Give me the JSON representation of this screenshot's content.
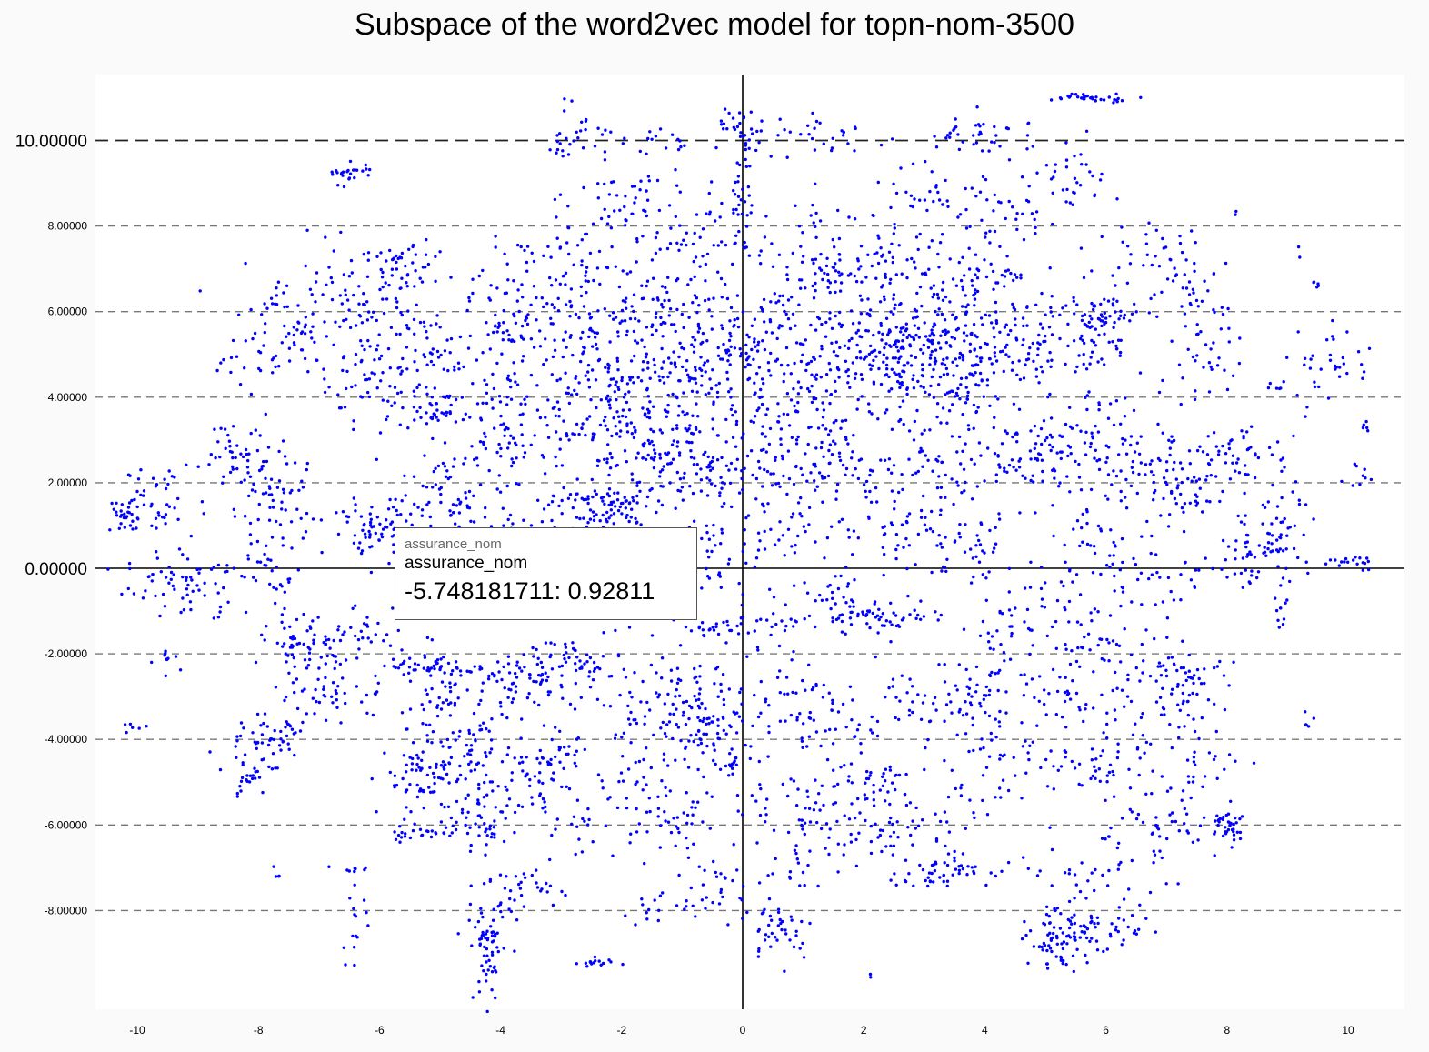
{
  "chart_data": {
    "type": "scatter",
    "title": "Subspace of the word2vec model for topn-nom-3500",
    "xlabel": "",
    "ylabel": "",
    "xlim": [
      -10.5,
      10.5
    ],
    "ylim": [
      -10.4,
      11.4
    ],
    "x_ticks": [
      "-10",
      "-8",
      "-6",
      "-4",
      "-2",
      "0",
      "2",
      "4",
      "6",
      "8",
      "10"
    ],
    "y_ticks": [
      {
        "value": 10,
        "label": "10.00000",
        "major": true,
        "dashed": true
      },
      {
        "value": 8,
        "label": "8.00000",
        "major": false,
        "dashed": true
      },
      {
        "value": 6,
        "label": "6.00000",
        "major": false,
        "dashed": true
      },
      {
        "value": 4,
        "label": "4.00000",
        "major": false,
        "dashed": true
      },
      {
        "value": 2,
        "label": "2.00000",
        "major": false,
        "dashed": true
      },
      {
        "value": 0,
        "label": "0.00000",
        "major": true,
        "dashed": false
      },
      {
        "value": -2,
        "label": "-2.00000",
        "major": false,
        "dashed": true
      },
      {
        "value": -4,
        "label": "-4.00000",
        "major": false,
        "dashed": true
      },
      {
        "value": -6,
        "label": "-6.00000",
        "major": false,
        "dashed": true
      },
      {
        "value": -8,
        "label": "-8.00000",
        "major": false,
        "dashed": true
      }
    ],
    "point_color": "#0000ff",
    "point_count": 3500,
    "clusters": [
      [
        -10.2,
        1.2,
        0.2,
        0.2,
        30
      ],
      [
        -9.6,
        1.6,
        0.3,
        0.4,
        40
      ],
      [
        -9.2,
        -0.4,
        0.5,
        0.4,
        70
      ],
      [
        -10.0,
        -3.7,
        0.15,
        0.1,
        6
      ],
      [
        -9.5,
        -2.1,
        0.15,
        0.2,
        10
      ],
      [
        -8.6,
        4.7,
        0.1,
        0.1,
        3
      ],
      [
        -8.3,
        2.8,
        0.3,
        0.4,
        40
      ],
      [
        -7.8,
        1.5,
        0.3,
        0.8,
        70
      ],
      [
        -7.6,
        5.5,
        0.5,
        0.6,
        80
      ],
      [
        -7.8,
        -0.2,
        0.3,
        0.3,
        20
      ],
      [
        -7.4,
        -1.7,
        0.2,
        0.3,
        20
      ],
      [
        -7.8,
        -3.9,
        0.4,
        0.3,
        50
      ],
      [
        -8.2,
        -4.8,
        0.2,
        0.4,
        30
      ],
      [
        -7.7,
        -7.2,
        0.05,
        0.1,
        4
      ],
      [
        -6.7,
        -1.7,
        0.6,
        0.4,
        80
      ],
      [
        -6.8,
        -2.9,
        0.5,
        0.3,
        40
      ],
      [
        -6.3,
        5.9,
        0.6,
        0.7,
        80
      ],
      [
        -6.3,
        4.2,
        0.3,
        0.4,
        30
      ],
      [
        -6.5,
        9.2,
        0.2,
        0.15,
        25
      ],
      [
        -6.4,
        -7.0,
        0.2,
        0.1,
        8
      ],
      [
        -6.4,
        -8.3,
        0.1,
        0.4,
        15
      ],
      [
        -6.0,
        0.9,
        0.4,
        0.3,
        70
      ],
      [
        -5.5,
        7.0,
        0.4,
        0.4,
        40
      ],
      [
        -5.3,
        5.0,
        0.6,
        0.7,
        80
      ],
      [
        -5.0,
        3.8,
        0.4,
        0.3,
        40
      ],
      [
        -4.8,
        1.6,
        0.6,
        0.6,
        80
      ],
      [
        -5.2,
        -2.3,
        0.3,
        0.1,
        30
      ],
      [
        -4.6,
        -2.4,
        0.3,
        0.1,
        25
      ],
      [
        -5.0,
        -4.7,
        0.5,
        0.5,
        120
      ],
      [
        -4.8,
        -3.2,
        0.5,
        0.4,
        50
      ],
      [
        -4.4,
        -6.1,
        0.4,
        0.3,
        50
      ],
      [
        -5.4,
        -6.2,
        0.3,
        0.1,
        20
      ],
      [
        -4.2,
        -9.0,
        0.12,
        0.6,
        60
      ],
      [
        -4.2,
        -7.8,
        0.3,
        0.4,
        20
      ],
      [
        -3.7,
        5.6,
        0.5,
        0.8,
        90
      ],
      [
        -3.8,
        3.3,
        0.4,
        0.6,
        70
      ],
      [
        -3.6,
        0.7,
        0.4,
        0.4,
        40
      ],
      [
        -3.5,
        -2.7,
        0.4,
        0.3,
        50
      ],
      [
        -3.6,
        -5.0,
        0.5,
        0.4,
        50
      ],
      [
        -3.4,
        -7.5,
        0.4,
        0.3,
        20
      ],
      [
        -2.8,
        10.2,
        0.3,
        0.3,
        30
      ],
      [
        -2.9,
        7.0,
        0.5,
        0.6,
        60
      ],
      [
        -2.6,
        5.2,
        0.5,
        0.6,
        70
      ],
      [
        -2.4,
        3.4,
        0.5,
        0.6,
        80
      ],
      [
        -2.4,
        1.4,
        0.5,
        0.3,
        100
      ],
      [
        -2.6,
        -2.2,
        0.5,
        0.4,
        60
      ],
      [
        -2.8,
        -4.2,
        0.5,
        0.5,
        50
      ],
      [
        -2.4,
        -9.2,
        0.2,
        0.05,
        15
      ],
      [
        -2.6,
        -6.0,
        0.5,
        0.5,
        30
      ],
      [
        -1.9,
        8.5,
        0.5,
        0.6,
        50
      ],
      [
        -1.5,
        6.1,
        0.6,
        0.6,
        90
      ],
      [
        -1.5,
        4.2,
        0.6,
        0.6,
        90
      ],
      [
        -1.3,
        2.6,
        0.6,
        0.5,
        70
      ],
      [
        -1.0,
        -3.2,
        0.5,
        0.5,
        90
      ],
      [
        -1.4,
        -4.8,
        0.5,
        0.5,
        40
      ],
      [
        -1.2,
        -5.9,
        0.3,
        0.3,
        30
      ],
      [
        -1.6,
        -8.0,
        0.3,
        0.2,
        15
      ],
      [
        -1.3,
        10.0,
        0.3,
        0.2,
        15
      ],
      [
        -0.5,
        7.8,
        0.5,
        0.5,
        50
      ],
      [
        -0.5,
        4.8,
        0.5,
        0.6,
        100
      ],
      [
        -0.4,
        2.3,
        0.5,
        0.4,
        60
      ],
      [
        -0.5,
        0.2,
        0.4,
        0.4,
        40
      ],
      [
        -0.4,
        -1.4,
        0.5,
        0.1,
        25
      ],
      [
        -0.5,
        -4.0,
        0.4,
        0.4,
        40
      ],
      [
        -0.2,
        -4.6,
        0.1,
        0.1,
        10
      ],
      [
        -0.4,
        -7.4,
        0.3,
        0.4,
        30
      ],
      [
        0.0,
        10.1,
        0.2,
        0.3,
        30
      ],
      [
        0.0,
        8.5,
        0.1,
        0.8,
        30
      ],
      [
        0.2,
        5.6,
        0.5,
        0.6,
        60
      ],
      [
        0.4,
        3.3,
        0.5,
        0.7,
        70
      ],
      [
        0.6,
        1.2,
        0.5,
        0.7,
        60
      ],
      [
        0.3,
        -1.2,
        0.4,
        0.4,
        30
      ],
      [
        0.6,
        -3.2,
        0.5,
        0.5,
        40
      ],
      [
        0.8,
        -5.6,
        0.5,
        0.5,
        40
      ],
      [
        0.6,
        -8.4,
        0.3,
        0.4,
        40
      ],
      [
        1.0,
        -7.2,
        0.4,
        0.4,
        20
      ],
      [
        1.4,
        10.1,
        0.5,
        0.3,
        30
      ],
      [
        1.5,
        7.0,
        0.6,
        0.8,
        90
      ],
      [
        1.3,
        4.5,
        0.5,
        0.8,
        90
      ],
      [
        1.6,
        2.4,
        0.4,
        0.4,
        50
      ],
      [
        1.5,
        -0.8,
        0.4,
        0.4,
        40
      ],
      [
        1.4,
        -3.6,
        0.4,
        0.5,
        40
      ],
      [
        1.8,
        -6.2,
        0.5,
        0.3,
        30
      ],
      [
        2.0,
        -5.0,
        0.4,
        0.4,
        40
      ],
      [
        2.3,
        5.0,
        0.5,
        0.6,
        100
      ],
      [
        2.4,
        6.8,
        0.6,
        0.8,
        80
      ],
      [
        2.5,
        1.0,
        0.5,
        0.6,
        50
      ],
      [
        2.4,
        -1.1,
        0.5,
        0.2,
        50
      ],
      [
        2.6,
        -5.8,
        0.3,
        0.5,
        30
      ],
      [
        2.1,
        -9.5,
        0.02,
        0.05,
        2
      ],
      [
        3.1,
        5.2,
        0.5,
        0.5,
        120
      ],
      [
        3.2,
        8.8,
        0.4,
        0.4,
        30
      ],
      [
        3.2,
        2.2,
        0.5,
        0.5,
        50
      ],
      [
        3.0,
        -3.4,
        0.4,
        0.6,
        40
      ],
      [
        3.0,
        -7.2,
        0.3,
        0.2,
        25
      ],
      [
        3.6,
        3.9,
        0.5,
        0.5,
        70
      ],
      [
        3.9,
        6.4,
        0.5,
        0.6,
        70
      ],
      [
        3.8,
        10.0,
        0.4,
        0.3,
        30
      ],
      [
        3.7,
        0.5,
        0.4,
        0.4,
        40
      ],
      [
        3.9,
        -2.8,
        0.4,
        0.5,
        40
      ],
      [
        3.5,
        -7.0,
        0.3,
        0.2,
        30
      ],
      [
        3.8,
        -5.2,
        0.4,
        0.5,
        30
      ],
      [
        4.5,
        5.0,
        0.5,
        0.5,
        60
      ],
      [
        4.3,
        8.2,
        0.6,
        0.6,
        40
      ],
      [
        4.7,
        2.5,
        0.5,
        0.5,
        50
      ],
      [
        4.3,
        -1.6,
        0.4,
        0.5,
        30
      ],
      [
        4.5,
        -4.6,
        0.5,
        0.5,
        30
      ],
      [
        4.4,
        10.4,
        0.3,
        0.2,
        10
      ],
      [
        5.5,
        5.4,
        0.6,
        0.7,
        80
      ],
      [
        5.0,
        2.7,
        0.4,
        0.5,
        40
      ],
      [
        5.2,
        -0.8,
        0.5,
        0.6,
        40
      ],
      [
        5.3,
        -3.2,
        0.5,
        0.6,
        40
      ],
      [
        5.3,
        -8.7,
        0.3,
        0.3,
        80
      ],
      [
        5.7,
        -7.6,
        0.5,
        0.6,
        50
      ],
      [
        5.8,
        11.0,
        0.4,
        0.05,
        35
      ],
      [
        5.5,
        9.2,
        0.3,
        0.4,
        30
      ],
      [
        6.0,
        5.9,
        0.3,
        0.2,
        40
      ],
      [
        6.0,
        3.0,
        0.5,
        0.6,
        50
      ],
      [
        6.0,
        0.7,
        0.4,
        0.5,
        40
      ],
      [
        6.0,
        -1.8,
        0.5,
        0.5,
        40
      ],
      [
        6.0,
        -4.6,
        0.4,
        0.5,
        40
      ],
      [
        6.2,
        -8.5,
        0.3,
        0.2,
        20
      ],
      [
        6.8,
        7.3,
        0.5,
        0.6,
        40
      ],
      [
        6.8,
        2.4,
        0.5,
        0.5,
        60
      ],
      [
        6.9,
        -0.4,
        0.5,
        0.5,
        30
      ],
      [
        6.9,
        -3.0,
        0.5,
        0.6,
        40
      ],
      [
        6.8,
        -6.2,
        0.5,
        0.5,
        40
      ],
      [
        7.4,
        6.2,
        0.3,
        0.5,
        30
      ],
      [
        7.6,
        4.9,
        0.3,
        0.4,
        30
      ],
      [
        7.5,
        1.8,
        0.5,
        0.5,
        40
      ],
      [
        7.4,
        -2.7,
        0.3,
        0.3,
        40
      ],
      [
        7.6,
        -4.7,
        0.4,
        0.5,
        30
      ],
      [
        8.0,
        -6.0,
        0.2,
        0.2,
        40
      ],
      [
        8.2,
        2.8,
        0.3,
        0.3,
        30
      ],
      [
        8.3,
        0.5,
        0.3,
        0.5,
        30
      ],
      [
        8.8,
        0.7,
        0.3,
        0.5,
        50
      ],
      [
        8.9,
        -1.0,
        0.1,
        0.4,
        10
      ],
      [
        8.9,
        4.3,
        0.1,
        0.1,
        6
      ],
      [
        9.0,
        2.0,
        0.3,
        0.4,
        15
      ],
      [
        9.5,
        6.7,
        0.1,
        0.1,
        5
      ],
      [
        9.8,
        4.9,
        0.3,
        0.4,
        30
      ],
      [
        10.1,
        0.1,
        0.3,
        0.1,
        20
      ],
      [
        10.2,
        2.2,
        0.2,
        0.4,
        10
      ],
      [
        10.3,
        3.3,
        0.05,
        0.1,
        5
      ],
      [
        9.3,
        -3.6,
        0.1,
        0.3,
        5
      ],
      [
        8.3,
        8.3,
        0.1,
        0.1,
        2
      ],
      [
        9.2,
        7.3,
        0.1,
        0.1,
        2
      ],
      [
        9.4,
        4.0,
        0.1,
        0.3,
        6
      ]
    ],
    "highlight": {
      "label": "assurance_nom",
      "x": -5.748181711,
      "y": 0.92811
    }
  },
  "tooltip": {
    "header": "assurance_nom",
    "label": "assurance_nom",
    "value": "-5.748181711: 0.92811"
  }
}
